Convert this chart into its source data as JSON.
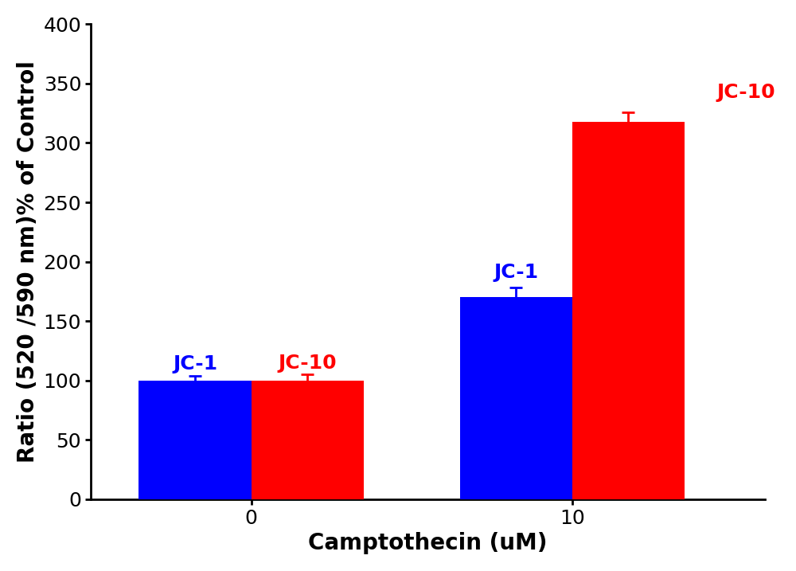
{
  "groups": [
    "0",
    "10"
  ],
  "group_positions": [
    1,
    3
  ],
  "bar_width": 0.7,
  "jc1_values": [
    100,
    170
  ],
  "jc10_values": [
    100,
    318
  ],
  "jc1_errors": [
    4,
    8
  ],
  "jc10_errors": [
    5,
    8
  ],
  "jc1_color": "#0000FF",
  "jc10_color": "#FF0000",
  "ylabel": "Ratio (520 /590 nm)% of Control",
  "xlabel": "Camptothecin (uM)",
  "ylim": [
    0,
    400
  ],
  "yticks": [
    0,
    50,
    100,
    150,
    200,
    250,
    300,
    350,
    400
  ],
  "label_jc1": "JC-1",
  "label_jc10": "JC-10",
  "axis_label_fontsize": 20,
  "tick_fontsize": 18,
  "annotation_fontsize": 18,
  "background_color": "#FFFFFF"
}
